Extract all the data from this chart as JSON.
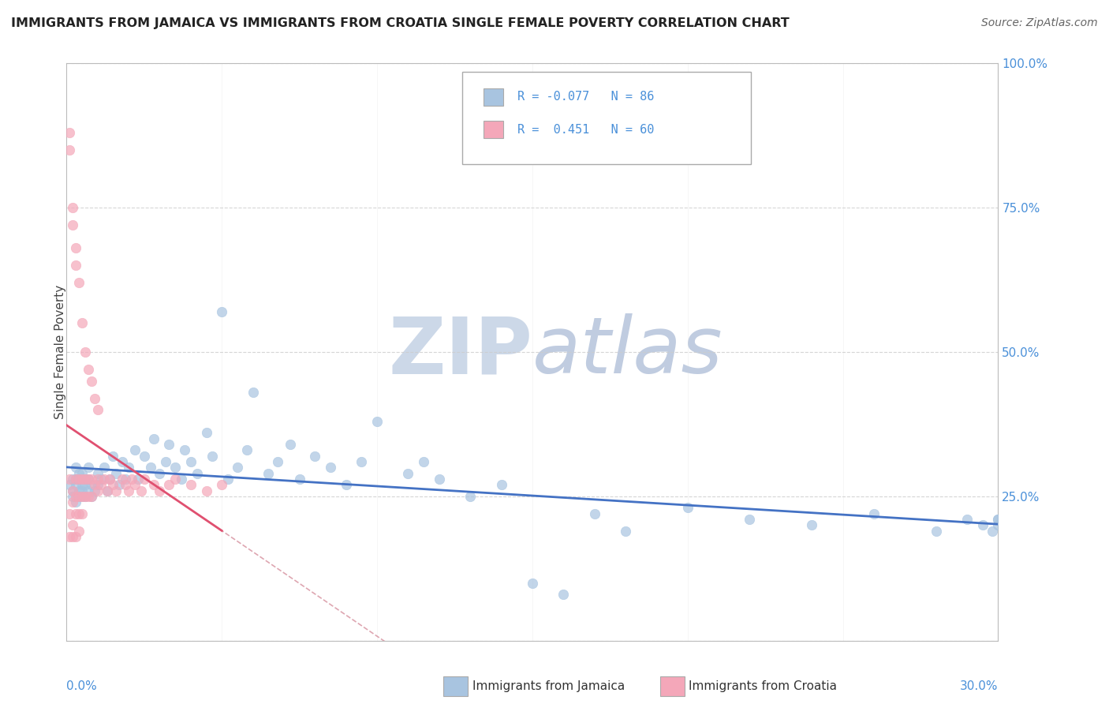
{
  "title": "IMMIGRANTS FROM JAMAICA VS IMMIGRANTS FROM CROATIA SINGLE FEMALE POVERTY CORRELATION CHART",
  "source": "Source: ZipAtlas.com",
  "ylabel": "Single Female Poverty",
  "x_min": 0.0,
  "x_max": 0.3,
  "y_min": 0.0,
  "y_max": 1.0,
  "y_ticks": [
    0.0,
    0.25,
    0.5,
    0.75,
    1.0
  ],
  "y_tick_labels": [
    "",
    "25.0%",
    "50.0%",
    "75.0%",
    "100.0%"
  ],
  "jamaica_color": "#a8c4e0",
  "croatia_color": "#f4a7b9",
  "jamaica_R": -0.077,
  "jamaica_N": 86,
  "croatia_R": 0.451,
  "croatia_N": 60,
  "tick_label_color": "#4a90d9",
  "trendline_jamaica_color": "#4472c4",
  "trendline_croatia_color": "#e05070",
  "dashed_line_color": "#d08090",
  "watermark_zip_color": "#ccd8e8",
  "watermark_atlas_color": "#c0cce0",
  "grid_color": "#cccccc",
  "background_color": "#ffffff",
  "border_color": "#bbbbbb",
  "jamaica_x": [
    0.001,
    0.002,
    0.002,
    0.002,
    0.003,
    0.003,
    0.003,
    0.003,
    0.004,
    0.004,
    0.004,
    0.004,
    0.005,
    0.005,
    0.005,
    0.005,
    0.006,
    0.006,
    0.006,
    0.007,
    0.007,
    0.007,
    0.008,
    0.008,
    0.009,
    0.01,
    0.01,
    0.011,
    0.012,
    0.013,
    0.014,
    0.015,
    0.016,
    0.017,
    0.018,
    0.019,
    0.02,
    0.022,
    0.023,
    0.025,
    0.027,
    0.028,
    0.03,
    0.032,
    0.033,
    0.035,
    0.037,
    0.038,
    0.04,
    0.042,
    0.045,
    0.047,
    0.05,
    0.052,
    0.055,
    0.058,
    0.06,
    0.065,
    0.068,
    0.072,
    0.075,
    0.08,
    0.085,
    0.09,
    0.095,
    0.1,
    0.11,
    0.115,
    0.12,
    0.13,
    0.14,
    0.15,
    0.16,
    0.17,
    0.18,
    0.2,
    0.22,
    0.24,
    0.26,
    0.28,
    0.29,
    0.295,
    0.298,
    0.3,
    0.3,
    0.3
  ],
  "jamaica_y": [
    0.27,
    0.26,
    0.28,
    0.25,
    0.27,
    0.3,
    0.24,
    0.28,
    0.26,
    0.29,
    0.25,
    0.28,
    0.27,
    0.25,
    0.29,
    0.26,
    0.28,
    0.25,
    0.27,
    0.26,
    0.28,
    0.3,
    0.25,
    0.27,
    0.26,
    0.29,
    0.27,
    0.28,
    0.3,
    0.26,
    0.28,
    0.32,
    0.29,
    0.27,
    0.31,
    0.28,
    0.3,
    0.33,
    0.28,
    0.32,
    0.3,
    0.35,
    0.29,
    0.31,
    0.34,
    0.3,
    0.28,
    0.33,
    0.31,
    0.29,
    0.36,
    0.32,
    0.57,
    0.28,
    0.3,
    0.33,
    0.43,
    0.29,
    0.31,
    0.34,
    0.28,
    0.32,
    0.3,
    0.27,
    0.31,
    0.38,
    0.29,
    0.31,
    0.28,
    0.25,
    0.27,
    0.1,
    0.08,
    0.22,
    0.19,
    0.23,
    0.21,
    0.2,
    0.22,
    0.19,
    0.21,
    0.2,
    0.19,
    0.21,
    0.2,
    0.21
  ],
  "croatia_x": [
    0.001,
    0.001,
    0.001,
    0.001,
    0.001,
    0.002,
    0.002,
    0.002,
    0.002,
    0.002,
    0.002,
    0.003,
    0.003,
    0.003,
    0.003,
    0.003,
    0.003,
    0.004,
    0.004,
    0.004,
    0.004,
    0.004,
    0.005,
    0.005,
    0.005,
    0.005,
    0.006,
    0.006,
    0.006,
    0.007,
    0.007,
    0.007,
    0.008,
    0.008,
    0.008,
    0.009,
    0.009,
    0.01,
    0.01,
    0.01,
    0.011,
    0.012,
    0.013,
    0.014,
    0.015,
    0.016,
    0.018,
    0.019,
    0.02,
    0.021,
    0.022,
    0.024,
    0.025,
    0.028,
    0.03,
    0.033,
    0.035,
    0.04,
    0.045,
    0.05
  ],
  "croatia_y": [
    0.88,
    0.85,
    0.28,
    0.22,
    0.18,
    0.75,
    0.72,
    0.26,
    0.24,
    0.2,
    0.18,
    0.68,
    0.65,
    0.28,
    0.25,
    0.22,
    0.18,
    0.62,
    0.28,
    0.25,
    0.22,
    0.19,
    0.55,
    0.28,
    0.25,
    0.22,
    0.5,
    0.28,
    0.25,
    0.47,
    0.28,
    0.25,
    0.45,
    0.28,
    0.25,
    0.42,
    0.27,
    0.4,
    0.28,
    0.26,
    0.27,
    0.28,
    0.26,
    0.28,
    0.27,
    0.26,
    0.28,
    0.27,
    0.26,
    0.28,
    0.27,
    0.26,
    0.28,
    0.27,
    0.26,
    0.27,
    0.28,
    0.27,
    0.26,
    0.27
  ]
}
